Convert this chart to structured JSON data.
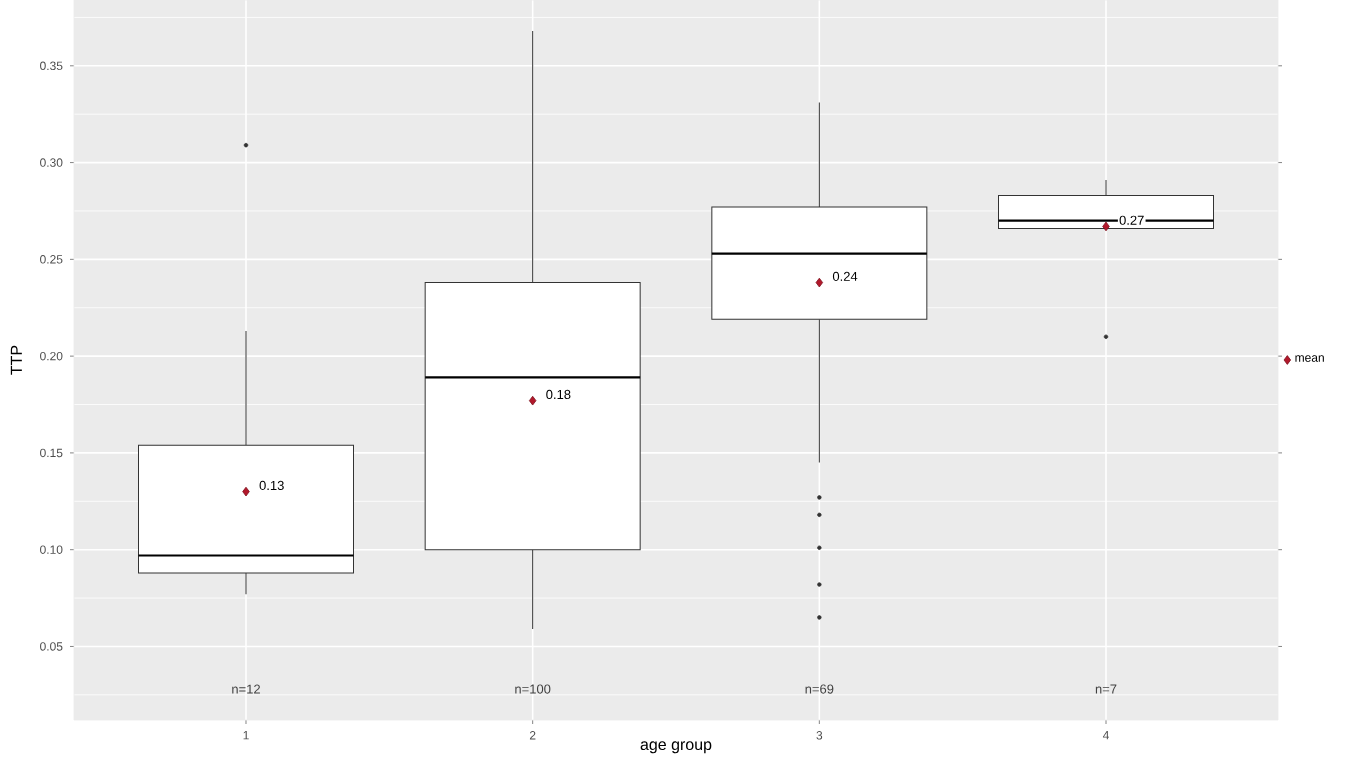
{
  "chart_data": {
    "type": "box",
    "xlabel": "age group",
    "ylabel": "TTP",
    "categories": [
      "1",
      "2",
      "3",
      "4"
    ],
    "boxes": [
      {
        "low": 0.077,
        "q1": 0.088,
        "median": 0.097,
        "q3": 0.154,
        "high": 0.213,
        "outliers": [
          0.309
        ]
      },
      {
        "low": 0.059,
        "q1": 0.1,
        "median": 0.189,
        "q3": 0.238,
        "high": 0.368
      },
      {
        "low": 0.145,
        "q1": 0.219,
        "median": 0.253,
        "q3": 0.277,
        "high": 0.331,
        "outliers": [
          0.127,
          0.118,
          0.101,
          0.082,
          0.065
        ]
      },
      {
        "low": 0.266,
        "q1": 0.266,
        "median": 0.27,
        "q3": 0.283,
        "high": 0.291,
        "outliers": [
          0.21
        ]
      }
    ],
    "ylim": [
      0.012,
      0.384
    ],
    "yticks": [
      {
        "value": 0.05,
        "label": "0.05"
      },
      {
        "value": 0.1,
        "label": "0.10"
      },
      {
        "value": 0.15,
        "label": "0.15"
      },
      {
        "value": 0.2,
        "label": "0.20"
      },
      {
        "value": 0.25,
        "label": "0.25"
      },
      {
        "value": 0.3,
        "label": "0.30"
      },
      {
        "value": 0.35,
        "label": "0.35"
      }
    ],
    "grid": true,
    "legend": "right",
    "series": [
      {
        "type": "scatter",
        "name": "mean",
        "color": "#b2182b",
        "marker": "diamond",
        "x": [
          "1",
          "2",
          "3",
          "4"
        ],
        "values": [
          0.13,
          0.177,
          0.238,
          0.267
        ],
        "value_labels": [
          "0.13",
          "0.18",
          "0.24",
          "0.27"
        ]
      }
    ],
    "annotations": [
      "n=12",
      "n=100",
      "n=69",
      "n=7"
    ]
  }
}
